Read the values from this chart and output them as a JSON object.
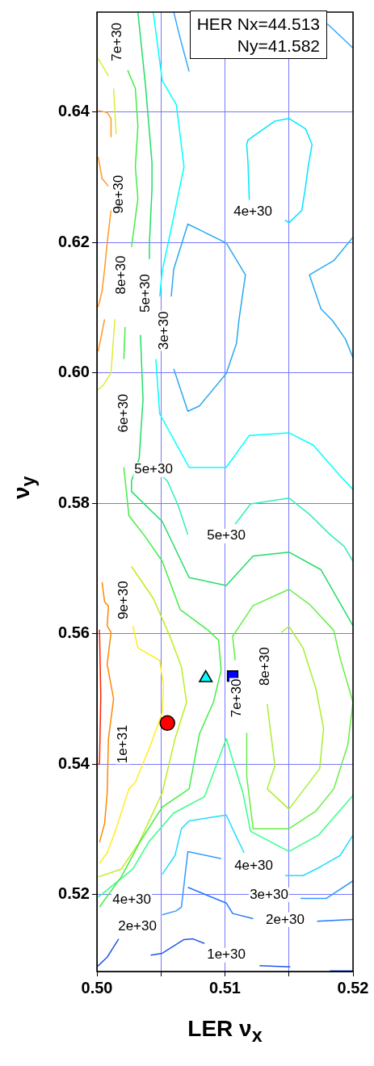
{
  "chart_data": {
    "type": "line",
    "xlabel": "LER ν$_{x}$",
    "ylabel": "ν$_{y}$",
    "xlim": [
      0.5,
      0.52
    ],
    "ylim": [
      0.5082,
      0.6553
    ],
    "xticks": [
      {
        "value": 0.5,
        "label": "0.50"
      },
      {
        "value": 0.505,
        "label": null
      },
      {
        "value": 0.51,
        "label": "0.51"
      },
      {
        "value": 0.515,
        "label": null
      },
      {
        "value": 0.52,
        "label": "0.52"
      }
    ],
    "yticks": [
      {
        "value": 0.52,
        "label": "0.52"
      },
      {
        "value": 0.54,
        "label": "0.54"
      },
      {
        "value": 0.56,
        "label": "0.56"
      },
      {
        "value": 0.58,
        "label": "0.58"
      },
      {
        "value": 0.6,
        "label": "0.60"
      },
      {
        "value": 0.62,
        "label": "0.62"
      },
      {
        "value": 0.64,
        "label": "0.64"
      }
    ],
    "grid": true,
    "marker": "none",
    "line_style": "solid",
    "series": [
      {
        "color": "#33aaff",
        "x": [
          0.506,
          0.5065,
          0.5072
        ],
        "values": [
          0.6553,
          0.6513,
          0.6462
        ]
      },
      {
        "color": "#33aaff",
        "x": [
          0.518,
          0.52
        ],
        "values": [
          0.6535,
          0.6498
        ]
      },
      {
        "color": "#00e5ff",
        "x": [
          0.5119,
          0.5118,
          0.5117,
          0.5118,
          0.5139,
          0.515,
          0.5163,
          0.5168,
          0.5165,
          0.5163,
          0.516,
          0.515,
          0.5147
        ],
        "values": [
          0.6265,
          0.6322,
          0.635,
          0.6357,
          0.6386,
          0.639,
          0.6374,
          0.635,
          0.6316,
          0.6286,
          0.6249,
          0.623,
          0.6234
        ]
      },
      {
        "color": "#2aa8f0",
        "x": [
          0.506,
          0.5071,
          0.508,
          0.5101,
          0.5109,
          0.5111,
          0.5116,
          0.5101,
          0.5071,
          0.506,
          0.5058
        ],
        "values": [
          0.6006,
          0.5941,
          0.5949,
          0.5999,
          0.6045,
          0.6082,
          0.615,
          0.6199,
          0.6228,
          0.6159,
          0.6117
        ]
      },
      {
        "color": "#2aa8f0",
        "x": [
          0.52,
          0.5185,
          0.5166,
          0.5175,
          0.5184,
          0.5194,
          0.52
        ],
        "values": [
          0.6208,
          0.6172,
          0.615,
          0.6098,
          0.608,
          0.6052,
          0.6023
        ]
      },
      {
        "color": "#00ffff",
        "x": [
          0.5044,
          0.5051,
          0.5062,
          0.5068,
          0.5061,
          0.5051,
          0.5049,
          null,
          0.5046,
          0.5049,
          0.5072,
          0.5101,
          0.5119,
          0.515,
          0.5169,
          0.519,
          0.52
        ],
        "values": [
          0.6553,
          0.6448,
          0.6411,
          0.6316,
          0.6249,
          0.6156,
          0.6117,
          null,
          0.6021,
          0.5937,
          0.5855,
          0.5855,
          0.5904,
          0.5908,
          0.5889,
          0.5842,
          0.5821
        ]
      },
      {
        "color": "#22dd66",
        "x": [
          0.5032,
          0.5038,
          0.5043,
          0.5043,
          0.5041,
          0.5041,
          null,
          0.5034,
          0.5036,
          0.5033,
          0.5027,
          0.5027,
          0.5051,
          0.5072,
          0.5101,
          0.5122,
          0.515,
          0.5175,
          0.52
        ],
        "values": [
          0.6553,
          0.6439,
          0.6322,
          0.6282,
          0.6199,
          0.6175,
          null,
          0.6058,
          0.5959,
          0.5869,
          0.5834,
          0.5818,
          0.5772,
          0.5686,
          0.5674,
          0.5719,
          0.5725,
          0.5698,
          0.5612
        ]
      },
      {
        "color": "#33eebb",
        "x": [
          0.5051,
          0.5055,
          0.5063,
          0.5071,
          null,
          0.5108,
          0.512,
          0.515,
          0.5166,
          0.5182,
          0.5193,
          0.52
        ],
        "values": [
          0.5842,
          0.5834,
          0.5799,
          0.5752,
          null,
          0.5768,
          0.5799,
          0.5808,
          0.5783,
          0.5752,
          0.5734,
          0.5711
        ]
      },
      {
        "color": "#44ee44",
        "x": [
          0.5024,
          0.503,
          0.5032,
          0.503,
          0.5032,
          0.5027,
          null,
          0.5022,
          0.5021,
          null,
          0.5021,
          0.5025,
          0.5038,
          0.5051,
          0.5065,
          0.5087,
          0.5095,
          0.5097,
          0.5091,
          0.508,
          0.5072,
          0.5051,
          0.5034,
          0.5019,
          0.5002
        ],
        "values": [
          0.6464,
          0.6436,
          0.6378,
          0.6316,
          0.6267,
          0.6193,
          null,
          0.607,
          0.6021,
          null,
          0.5855,
          0.5781,
          0.5748,
          0.5711,
          0.5637,
          0.5605,
          0.559,
          0.5544,
          0.5495,
          0.5446,
          0.5362,
          0.5334,
          0.5282,
          0.5227,
          0.5181
        ]
      },
      {
        "color": "#bbee22",
        "x": [
          0.5027,
          0.5044,
          0.5057,
          0.5066,
          0.507,
          0.5061,
          0.5051,
          0.5033,
          0.5019,
          0.5001
        ],
        "values": [
          0.5703,
          0.5654,
          0.5596,
          0.5549,
          0.5495,
          0.5439,
          0.5356,
          0.528,
          0.5239,
          0.5227
        ]
      },
      {
        "color": "#ffee22",
        "x": [
          0.5028,
          0.5032,
          0.5049,
          0.5052,
          0.5051,
          0.5042,
          0.503,
          0.5025,
          0.5015,
          0.5008,
          0.5002
        ],
        "values": [
          0.5612,
          0.5578,
          0.5559,
          0.552,
          0.5479,
          0.543,
          0.5372,
          0.5362,
          0.5301,
          0.5264,
          0.5248
        ]
      },
      {
        "color": "#ff8800",
        "x": [
          0.5004,
          0.5006,
          0.5009,
          0.5008,
          0.5011,
          0.5008,
          0.5013,
          0.5009,
          0.5008,
          0.5006,
          0.5002
        ],
        "values": [
          0.5679,
          0.5649,
          0.5642,
          0.5612,
          0.5602,
          0.5553,
          0.55,
          0.5439,
          0.5356,
          0.5309,
          0.528
        ]
      },
      {
        "color": "#ff2200",
        "x": [
          0.5002,
          0.5003,
          0.5002,
          0.5
        ],
        "values": [
          0.5606,
          0.5504,
          0.54,
          0.54
        ]
      },
      {
        "color": "#ff9922",
        "x": [
          0.5001,
          0.5008,
          0.5011,
          0.5011,
          null,
          0.5001,
          0.5004,
          0.5009,
          null,
          0.5011,
          0.5008,
          0.5006,
          0.5004,
          0.5001,
          null,
          0.5006,
          0.5001
        ],
        "values": [
          0.6402,
          0.6399,
          0.639,
          0.6362,
          null,
          0.6331,
          0.6298,
          0.6286,
          null,
          0.6249,
          0.6199,
          0.6159,
          0.6125,
          0.6101,
          null,
          0.6082,
          0.6033
        ]
      },
      {
        "color": "#ddee33",
        "x": [
          0.5001,
          0.5009,
          null,
          0.5013,
          0.5015,
          null,
          0.5014,
          0.5011,
          0.5005,
          0.5001
        ],
        "values": [
          0.6482,
          0.6455,
          null,
          0.6436,
          0.6366,
          null,
          0.6082,
          0.6,
          0.5981,
          0.5974
        ]
      },
      {
        "color": "#aaee33",
        "x": [
          0.5144,
          0.515,
          0.5161,
          0.5171,
          0.5177,
          0.5174,
          0.515,
          0.5133,
          0.5139,
          0.5133
        ],
        "values": [
          0.5602,
          0.5611,
          0.5578,
          0.5516,
          0.5455,
          0.5393,
          0.5331,
          0.5362,
          0.5397,
          0.5492
        ]
      },
      {
        "color": "#66ee44",
        "x": [
          0.5108,
          0.5106,
          0.5122,
          0.515,
          0.5166,
          0.5185,
          0.519,
          0.52,
          0.5196,
          0.5185,
          0.5171,
          0.515,
          0.5122,
          0.5117,
          0.5117
        ],
        "values": [
          0.5559,
          0.5596,
          0.5643,
          0.5668,
          0.5645,
          0.5605,
          0.5562,
          0.5495,
          0.543,
          0.5362,
          0.5328,
          0.5301,
          0.5301,
          0.5381,
          0.5448
        ]
      },
      {
        "color": "#33ff88",
        "x": [
          0.5001,
          0.5013,
          0.5028,
          0.5041,
          0.506,
          0.5084,
          0.5101,
          0.5114,
          0.512,
          0.515,
          0.5173,
          0.52
        ],
        "values": [
          0.5196,
          0.5215,
          0.5239,
          0.5282,
          0.5325,
          0.535,
          0.5439,
          0.5356,
          0.5297,
          0.5266,
          0.5291,
          0.5352
        ]
      },
      {
        "color": "#22ddff",
        "x": [
          0.5051,
          0.5061,
          0.5066,
          0.5072,
          0.5101,
          0.5109,
          0.5115,
          null,
          0.5147,
          0.5161,
          0.5175,
          0.519,
          0.52
        ],
        "values": [
          0.5231,
          0.526,
          0.5301,
          0.5313,
          0.5322,
          0.5288,
          0.5264,
          null,
          0.5229,
          0.5229,
          0.5243,
          0.526,
          0.5291
        ]
      },
      {
        "color": "#3399ff",
        "x": [
          0.5051,
          0.5062,
          0.5066,
          0.5071,
          0.5097,
          null,
          0.5159,
          0.5179,
          0.52
        ],
        "values": [
          0.5169,
          0.5175,
          0.5181,
          0.5266,
          0.5255,
          null,
          0.5194,
          0.5194,
          0.5221
        ]
      },
      {
        "color": "#2277ff",
        "x": [
          0.5071,
          0.5101,
          0.5106,
          0.5122,
          null,
          0.5172,
          0.52
        ],
        "values": [
          0.5211,
          0.5187,
          0.5171,
          0.5163,
          null,
          0.5159,
          0.5162
        ]
      },
      {
        "color": "#2255ee",
        "x": [
          0.5,
          0.5008,
          0.5017,
          null,
          0.5042,
          0.5051,
          0.5068,
          0.5075,
          0.5084,
          null,
          0.5127,
          0.5151,
          null,
          0.5182,
          0.52
        ],
        "values": [
          0.5089,
          0.5104,
          0.5132,
          null,
          0.5107,
          0.511,
          0.5131,
          0.5132,
          0.5125,
          null,
          0.5091,
          0.5089,
          null,
          0.5083,
          0.5083
        ]
      },
      {
        "type": "scatter",
        "marker": "circle",
        "color": "#ff0000",
        "x": [
          0.5055
        ],
        "values": [
          0.5463
        ]
      },
      {
        "type": "scatter",
        "marker": "triangle",
        "color": "#00ffff",
        "x": [
          0.5085
        ],
        "values": [
          0.5532
        ]
      },
      {
        "type": "scatter",
        "marker": "square",
        "color": "#0000ff",
        "x": [
          0.5106
        ],
        "values": [
          0.5535
        ]
      }
    ],
    "annotations": [
      "HER Nx=44.513",
      "Ny=41.582",
      "7e+30",
      "9e+30",
      "8e+30",
      "5e+30",
      "3e+30",
      "6e+30",
      "4e+30",
      "5e+30",
      "5e+30",
      "9e+30",
      "1e+31",
      "7e+30",
      "8e+30",
      "4e+30",
      "3e+30",
      "2e+30",
      "1e+30",
      "4e+30",
      "2e+30"
    ]
  }
}
